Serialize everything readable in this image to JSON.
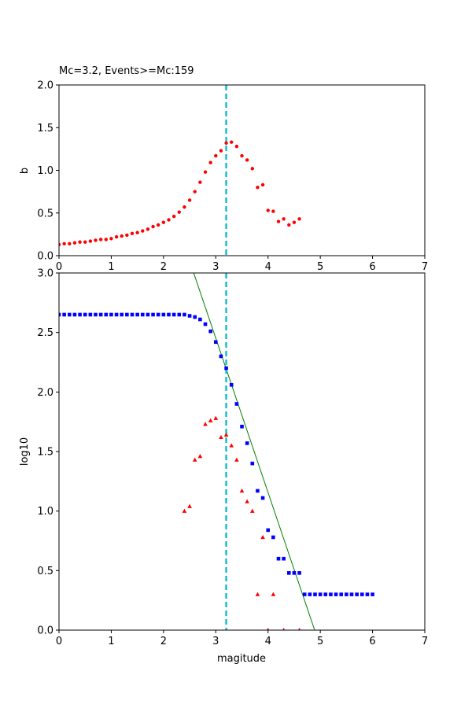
{
  "chart_data": [
    {
      "type": "scatter",
      "title": "Mc=3.2, Events>=Mc:159",
      "xlabel": "",
      "ylabel": "b",
      "xlim": [
        0,
        7
      ],
      "ylim": [
        0,
        2
      ],
      "xticks": [
        0,
        1,
        2,
        3,
        4,
        5,
        6,
        7
      ],
      "yticks": [
        0.0,
        0.5,
        1.0,
        1.5,
        2.0
      ],
      "vline": {
        "x": 3.2,
        "color": "#17becf",
        "style": "dashed"
      },
      "series": [
        {
          "marker": "circle",
          "color": "#ff0000",
          "x": [
            0.0,
            0.1,
            0.2,
            0.3,
            0.4,
            0.5,
            0.6,
            0.7,
            0.8,
            0.9,
            1.0,
            1.1,
            1.2,
            1.3,
            1.4,
            1.5,
            1.6,
            1.7,
            1.8,
            1.9,
            2.0,
            2.1,
            2.2,
            2.3,
            2.4,
            2.5,
            2.6,
            2.7,
            2.8,
            2.9,
            3.0,
            3.1,
            3.2,
            3.3,
            3.4,
            3.5,
            3.6,
            3.7,
            3.8,
            3.9,
            4.0,
            4.1,
            4.2,
            4.3,
            4.4,
            4.5,
            4.6
          ],
          "y": [
            0.13,
            0.14,
            0.14,
            0.15,
            0.16,
            0.16,
            0.17,
            0.18,
            0.19,
            0.19,
            0.2,
            0.22,
            0.23,
            0.24,
            0.26,
            0.27,
            0.29,
            0.31,
            0.34,
            0.36,
            0.39,
            0.42,
            0.46,
            0.51,
            0.57,
            0.65,
            0.75,
            0.86,
            0.98,
            1.09,
            1.17,
            1.23,
            1.32,
            1.33,
            1.28,
            1.17,
            1.12,
            1.02,
            0.8,
            0.83,
            0.53,
            0.52,
            0.4,
            0.43,
            0.36,
            0.39,
            0.43
          ]
        }
      ]
    },
    {
      "type": "scatter",
      "title": "",
      "xlabel": "magitude",
      "ylabel": "log10",
      "xlim": [
        0,
        7
      ],
      "ylim": [
        0,
        3
      ],
      "xticks": [
        0,
        1,
        2,
        3,
        4,
        5,
        6,
        7
      ],
      "yticks": [
        0.0,
        0.5,
        1.0,
        1.5,
        2.0,
        2.5,
        3.0
      ],
      "vline": {
        "x": 3.2,
        "color": "#17becf",
        "style": "dashed"
      },
      "fit_line": {
        "x": [
          2.4,
          4.9
        ],
        "y": [
          3.23,
          -0.01
        ],
        "color": "#008000"
      },
      "series": [
        {
          "marker": "square",
          "color": "#0000ff",
          "x": [
            0.0,
            0.1,
            0.2,
            0.3,
            0.4,
            0.5,
            0.6,
            0.7,
            0.8,
            0.9,
            1.0,
            1.1,
            1.2,
            1.3,
            1.4,
            1.5,
            1.6,
            1.7,
            1.8,
            1.9,
            2.0,
            2.1,
            2.2,
            2.3,
            2.4,
            2.5,
            2.6,
            2.7,
            2.8,
            2.9,
            3.0,
            3.1,
            3.2,
            3.3,
            3.4,
            3.5,
            3.6,
            3.7,
            3.8,
            3.9,
            4.0,
            4.1,
            4.2,
            4.3,
            4.4,
            4.5,
            4.6,
            4.7,
            4.8,
            4.9,
            5.0,
            5.1,
            5.2,
            5.3,
            5.4,
            5.5,
            5.6,
            5.7,
            5.8,
            5.9,
            6.0
          ],
          "y": [
            2.65,
            2.65,
            2.65,
            2.65,
            2.65,
            2.65,
            2.65,
            2.65,
            2.65,
            2.65,
            2.65,
            2.65,
            2.65,
            2.65,
            2.65,
            2.65,
            2.65,
            2.65,
            2.65,
            2.65,
            2.65,
            2.65,
            2.65,
            2.65,
            2.65,
            2.64,
            2.63,
            2.61,
            2.57,
            2.51,
            2.42,
            2.3,
            2.2,
            2.06,
            1.9,
            1.71,
            1.57,
            1.4,
            1.17,
            1.11,
            0.84,
            0.78,
            0.6,
            0.6,
            0.48,
            0.48,
            0.48,
            0.3,
            0.3,
            0.3,
            0.3,
            0.3,
            0.3,
            0.3,
            0.3,
            0.3,
            0.3,
            0.3,
            0.3,
            0.3,
            0.3
          ]
        },
        {
          "marker": "triangle",
          "color": "#ff0000",
          "x": [
            2.4,
            2.5,
            2.6,
            2.7,
            2.8,
            2.9,
            3.0,
            3.1,
            3.2,
            3.3,
            3.4,
            3.5,
            3.6,
            3.7,
            3.8,
            3.9,
            4.0,
            4.1,
            4.3,
            4.6
          ],
          "y": [
            1.0,
            1.04,
            1.43,
            1.46,
            1.73,
            1.76,
            1.78,
            1.62,
            1.64,
            1.55,
            1.43,
            1.17,
            1.08,
            1.0,
            0.3,
            0.78,
            0.0,
            0.3,
            0.0,
            0.0
          ]
        }
      ]
    }
  ]
}
